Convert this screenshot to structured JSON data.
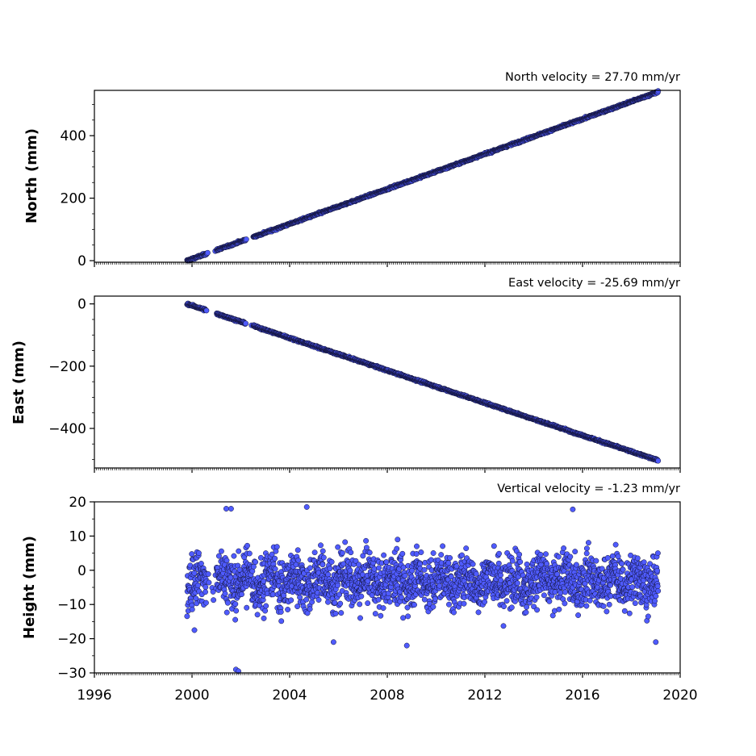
{
  "chart_data": [
    {
      "type": "scatter",
      "ylabel": "North (mm)",
      "velocity_text": "North velocity = 27.70 mm/yr",
      "xlim": [
        1996,
        2020
      ],
      "ylim": [
        -5,
        545
      ],
      "yticks": [
        0,
        200,
        400
      ],
      "ytick_labels": [
        "0",
        "200",
        "400"
      ],
      "series": [
        {
          "kind": "linear_trend",
          "velocity_mm_per_yr": 27.7,
          "start": [
            1999.8,
            0
          ],
          "end": [
            2019.1,
            540
          ]
        }
      ],
      "marker_color": "#4f5bff"
    },
    {
      "type": "scatter",
      "ylabel": "East (mm)",
      "velocity_text": "East velocity = -25.69 mm/yr",
      "xlim": [
        1996,
        2020
      ],
      "ylim": [
        -527,
        25
      ],
      "yticks": [
        0,
        -200,
        -400
      ],
      "ytick_labels": [
        "0",
        "−200",
        "−400"
      ],
      "series": [
        {
          "kind": "linear_trend",
          "velocity_mm_per_yr": -25.69,
          "start": [
            1999.8,
            0
          ],
          "end": [
            2019.1,
            -503
          ]
        }
      ],
      "marker_color": "#4f5bff"
    },
    {
      "type": "scatter",
      "ylabel": "Height (mm)",
      "velocity_text": "Vertical velocity = -1.23 mm/yr",
      "xlim": [
        1996,
        2020
      ],
      "ylim": [
        -30,
        20
      ],
      "yticks": [
        20,
        10,
        0,
        -10,
        -20,
        -30
      ],
      "ytick_labels": [
        "20",
        "10",
        "0",
        "−10",
        "−20",
        "−30"
      ],
      "xticks": [
        1996,
        2000,
        2004,
        2008,
        2012,
        2016,
        2020
      ],
      "xtick_labels": [
        "1996",
        "2000",
        "2004",
        "2008",
        "2012",
        "2016",
        "2020"
      ],
      "series": [
        {
          "kind": "noisy_band",
          "velocity_mm_per_yr": -1.23,
          "mean_mm": -3,
          "spread_mm": 6,
          "x_range": [
            1999.8,
            2019.1
          ],
          "outliers": [
            [
              2001.4,
              18
            ],
            [
              2001.6,
              18
            ],
            [
              2004.7,
              18.5
            ],
            [
              2015.6,
              17.8
            ],
            [
              2001.8,
              -29
            ],
            [
              2001.9,
              -29.5
            ],
            [
              2000.1,
              -17.5
            ],
            [
              2005.8,
              -21
            ],
            [
              2008.8,
              -22
            ],
            [
              2019.0,
              -21
            ]
          ]
        }
      ],
      "marker_color": "#4f5bff"
    }
  ]
}
